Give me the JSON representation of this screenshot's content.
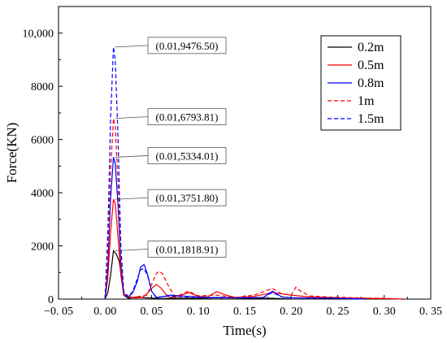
{
  "chart_data": {
    "type": "line",
    "xlabel": "Time(s)",
    "ylabel": "Force(KN)",
    "xlim": [
      -0.05,
      0.35
    ],
    "ylim": [
      0,
      11000
    ],
    "x_ticks": [
      -0.05,
      0.0,
      0.05,
      0.1,
      0.15,
      0.2,
      0.25,
      0.3,
      0.35
    ],
    "x_tick_labels": [
      "−0. 05",
      "0. 00",
      "0. 05",
      "0. 10",
      "0. 15",
      "0. 20",
      "0. 25",
      "0. 30",
      "0. 35"
    ],
    "y_ticks": [
      0,
      2000,
      4000,
      6000,
      8000,
      10000
    ],
    "y_tick_labels": [
      "0",
      "2000",
      "4000",
      "6000",
      "8000",
      "10,000"
    ],
    "grid": false,
    "legend_position": "top-right",
    "series": [
      {
        "name": "0.2m",
        "color": "#000000",
        "dash": "solid",
        "x": [
          0.0,
          0.003,
          0.006,
          0.009,
          0.012,
          0.015,
          0.018,
          0.02,
          0.025,
          0.03,
          0.035,
          0.04,
          0.045,
          0.05,
          0.055,
          0.06,
          0.07,
          0.08,
          0.1,
          0.12,
          0.14,
          0.16,
          0.18,
          0.2
        ],
        "y": [
          0,
          250,
          900,
          1819,
          1700,
          1450,
          800,
          150,
          30,
          60,
          80,
          60,
          50,
          40,
          30,
          20,
          30,
          40,
          30,
          50,
          40,
          30,
          30,
          0
        ]
      },
      {
        "name": "0.5m",
        "color": "#ff0000",
        "dash": "solid",
        "x": [
          0.0,
          0.003,
          0.006,
          0.009,
          0.011,
          0.014,
          0.017,
          0.02,
          0.03,
          0.04,
          0.045,
          0.05,
          0.055,
          0.06,
          0.065,
          0.07,
          0.08,
          0.09,
          0.1,
          0.11,
          0.12,
          0.13,
          0.14,
          0.16,
          0.18,
          0.2,
          0.22,
          0.24,
          0.26,
          0.28,
          0.3,
          0.32
        ],
        "y": [
          0,
          800,
          2500,
          3752,
          3600,
          2300,
          900,
          150,
          40,
          60,
          200,
          400,
          550,
          420,
          200,
          60,
          120,
          250,
          100,
          80,
          280,
          150,
          60,
          100,
          250,
          150,
          80,
          60,
          40,
          30,
          20,
          0
        ]
      },
      {
        "name": "0.8m",
        "color": "#0000ff",
        "dash": "solid",
        "x": [
          0.0,
          0.003,
          0.006,
          0.009,
          0.011,
          0.014,
          0.017,
          0.02,
          0.025,
          0.03,
          0.035,
          0.038,
          0.042,
          0.046,
          0.05,
          0.055,
          0.06,
          0.07,
          0.09,
          0.11,
          0.13,
          0.15,
          0.17,
          0.18,
          0.19,
          0.2,
          0.22,
          0.25,
          0.28
        ],
        "y": [
          0,
          1200,
          3800,
          5334,
          5100,
          3500,
          1300,
          200,
          80,
          250,
          700,
          1200,
          1300,
          900,
          300,
          60,
          80,
          150,
          100,
          60,
          60,
          50,
          60,
          300,
          80,
          50,
          40,
          30,
          0
        ]
      },
      {
        "name": "1m",
        "color": "#ff0000",
        "dash": "dashed",
        "x": [
          0.0,
          0.003,
          0.006,
          0.009,
          0.011,
          0.014,
          0.017,
          0.02,
          0.03,
          0.045,
          0.05,
          0.055,
          0.058,
          0.062,
          0.068,
          0.075,
          0.08,
          0.09,
          0.1,
          0.12,
          0.14,
          0.16,
          0.18,
          0.19,
          0.2,
          0.205,
          0.21,
          0.22,
          0.24,
          0.26,
          0.28,
          0.3,
          0.32
        ],
        "y": [
          0,
          1500,
          4800,
          6794,
          6500,
          4300,
          1500,
          200,
          60,
          150,
          550,
          950,
          1050,
          950,
          500,
          100,
          150,
          300,
          120,
          150,
          60,
          150,
          400,
          200,
          150,
          450,
          300,
          120,
          80,
          60,
          40,
          30,
          0
        ]
      },
      {
        "name": "1.5m",
        "color": "#0000ff",
        "dash": "dashed",
        "x": [
          0.0,
          0.003,
          0.006,
          0.009,
          0.011,
          0.014,
          0.017,
          0.02,
          0.025,
          0.03,
          0.035,
          0.038,
          0.042,
          0.046,
          0.05,
          0.055,
          0.06,
          0.07,
          0.09,
          0.11,
          0.13,
          0.15,
          0.17,
          0.18,
          0.19,
          0.2,
          0.22,
          0.25,
          0.28
        ],
        "y": [
          0,
          2500,
          6800,
          9477,
          9000,
          6000,
          2000,
          300,
          80,
          300,
          800,
          1100,
          1150,
          850,
          300,
          80,
          80,
          120,
          80,
          60,
          50,
          50,
          60,
          250,
          80,
          50,
          40,
          30,
          0
        ]
      }
    ],
    "annotations": [
      {
        "text": "(0.01,9476.50)",
        "x": 0.01,
        "y": 9476.5
      },
      {
        "text": "(0.01,6793.81)",
        "x": 0.01,
        "y": 6793.81
      },
      {
        "text": "(0.01,5334.01)",
        "x": 0.01,
        "y": 5334.01
      },
      {
        "text": "(0.01,3751.80)",
        "x": 0.01,
        "y": 3751.8
      },
      {
        "text": "(0.01,1818.91)",
        "x": 0.01,
        "y": 1818.91
      }
    ]
  }
}
